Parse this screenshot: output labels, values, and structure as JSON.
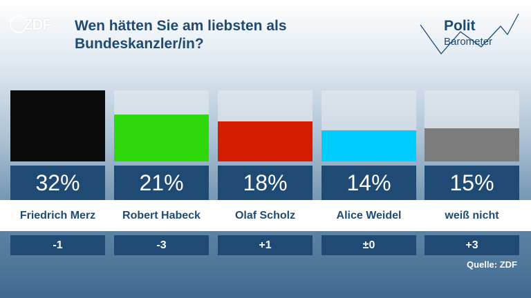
{
  "logo": {
    "text": "ZDF"
  },
  "header": {
    "title": "Wen hätten Sie am liebsten als Bundeskanzler/in?",
    "brand_line1": "Polit",
    "brand_line2": "Barometer"
  },
  "source": "Quelle: ZDF",
  "chart_data": {
    "type": "bar",
    "title": "Wen hätten Sie am liebsten als Bundeskanzler/in?",
    "categories": [
      "Friedrich Merz",
      "Robert Habeck",
      "Olaf Scholz",
      "Alice Weidel",
      "weiß nicht"
    ],
    "values": [
      32,
      21,
      18,
      14,
      15
    ],
    "value_labels": [
      "32%",
      "21%",
      "18%",
      "14%",
      "15%"
    ],
    "changes": [
      "-1",
      "-3",
      "+1",
      "±0",
      "+3"
    ],
    "colors": [
      "#0b0b0b",
      "#2fd80a",
      "#d31c00",
      "#00ccff",
      "#7c7c7c"
    ],
    "ylim": [
      0,
      32
    ],
    "grid": false,
    "legend": "none"
  }
}
